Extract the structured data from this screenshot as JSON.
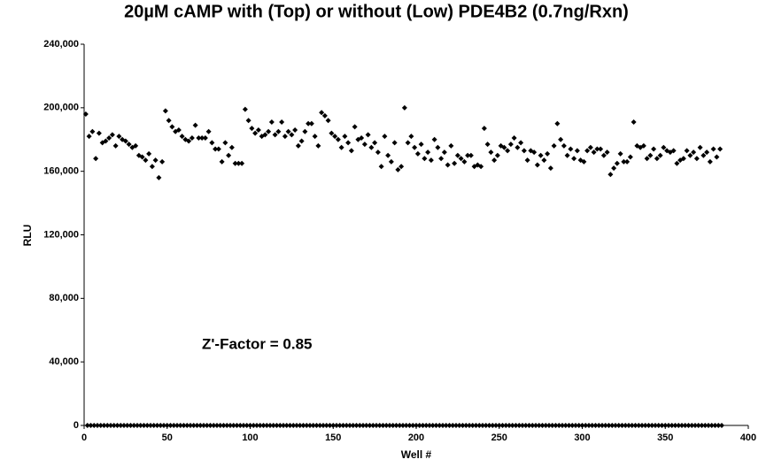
{
  "chart_data": {
    "type": "scatter",
    "title": "20µM cAMP with (Top) or without (Low) PDE4B2 (0.7ng/Rxn)",
    "x_label": "Well #",
    "y_label": "RLU",
    "annotation": "Z'-Factor = 0.85",
    "xlim": [
      0,
      400
    ],
    "xticks": [
      0,
      50,
      100,
      150,
      200,
      250,
      300,
      350,
      400
    ],
    "ylim": [
      0,
      240000
    ],
    "yticks": [
      0,
      {
        "value": 40000,
        "label": "40,000"
      },
      {
        "value": 80000,
        "label": "80,000"
      },
      {
        "value": 120000,
        "label": "120,000"
      },
      {
        "value": 160000,
        "label": "160,000"
      },
      {
        "value": 200000,
        "label": "200,000"
      },
      {
        "value": 240000,
        "label": "240,000"
      }
    ],
    "grid": false,
    "series": [
      {
        "color": "#000000",
        "x": [
          1,
          3,
          5,
          7,
          9,
          11,
          13,
          15,
          17,
          19,
          21,
          23,
          25,
          27,
          29,
          31,
          33,
          35,
          37,
          39,
          41,
          43,
          45,
          47,
          49,
          51,
          53,
          55,
          57,
          59,
          61,
          63,
          65,
          67,
          69,
          71,
          73,
          75,
          77,
          79,
          81,
          83,
          85,
          87,
          89,
          91,
          93,
          95,
          97,
          99,
          101,
          103,
          105,
          107,
          109,
          111,
          113,
          115,
          117,
          119,
          121,
          123,
          125,
          127,
          129,
          131,
          133,
          135,
          137,
          139,
          141,
          143,
          145,
          147,
          149,
          151,
          153,
          155,
          157,
          159,
          161,
          163,
          165,
          167,
          169,
          171,
          173,
          175,
          177,
          179,
          181,
          183,
          185,
          187,
          189,
          191,
          193,
          195,
          197,
          199,
          201,
          203,
          205,
          207,
          209,
          211,
          213,
          215,
          217,
          219,
          221,
          223,
          225,
          227,
          229,
          231,
          233,
          235,
          237,
          239,
          241,
          243,
          245,
          247,
          249,
          251,
          253,
          255,
          257,
          259,
          261,
          263,
          265,
          267,
          269,
          271,
          273,
          275,
          277,
          279,
          281,
          283,
          285,
          287,
          289,
          291,
          293,
          295,
          297,
          299,
          301,
          303,
          305,
          307,
          309,
          311,
          313,
          315,
          317,
          319,
          321,
          323,
          325,
          327,
          329,
          331,
          333,
          335,
          337,
          339,
          341,
          343,
          345,
          347,
          349,
          351,
          353,
          355,
          357,
          359,
          361,
          363,
          365,
          367,
          369,
          371,
          373,
          375,
          377,
          379,
          381,
          383
        ],
        "values": [
          196000,
          182000,
          185000,
          168000,
          184000,
          178000,
          179000,
          181000,
          183000,
          176000,
          182000,
          180000,
          179000,
          177000,
          175000,
          176000,
          170000,
          169000,
          167000,
          171000,
          163000,
          167000,
          156000,
          166000,
          198000,
          192000,
          188000,
          185000,
          186000,
          182000,
          180000,
          179000,
          181000,
          189000,
          181000,
          181000,
          181000,
          185000,
          178000,
          174000,
          174000,
          166000,
          178000,
          170000,
          175000,
          165000,
          165000,
          165000,
          199000,
          192000,
          187000,
          184000,
          186000,
          182000,
          183000,
          185000,
          191000,
          183000,
          185000,
          191000,
          182000,
          185000,
          183000,
          186000,
          176000,
          179000,
          185000,
          190000,
          190000,
          182000,
          176000,
          197000,
          195000,
          192000,
          184000,
          182000,
          180000,
          175000,
          182000,
          178000,
          173000,
          188000,
          180000,
          181000,
          177000,
          183000,
          175000,
          178000,
          172000,
          163000,
          182000,
          170000,
          166000,
          178000,
          161000,
          163000,
          200000,
          178000,
          182000,
          175000,
          171000,
          177000,
          168000,
          172000,
          167000,
          180000,
          175000,
          168000,
          172000,
          164000,
          176000,
          165000,
          170000,
          168000,
          166000,
          170000,
          170000,
          163000,
          164000,
          163000,
          187000,
          177000,
          172000,
          167000,
          170000,
          176000,
          175000,
          173000,
          177000,
          181000,
          175000,
          178000,
          173000,
          167000,
          173000,
          172000,
          164000,
          170000,
          167000,
          171000,
          162000,
          176000,
          190000,
          180000,
          176000,
          170000,
          174000,
          168000,
          173000,
          167000,
          166000,
          173000,
          175000,
          172000,
          174000,
          174000,
          170000,
          172000,
          158000,
          162000,
          165000,
          171000,
          166000,
          166000,
          169000,
          191000,
          176000,
          175000,
          176000,
          168000,
          170000,
          174000,
          168000,
          170000,
          175000,
          173000,
          172000,
          173000,
          165000,
          167000,
          168000,
          173000,
          170000,
          172000,
          168000,
          175000,
          170000,
          172000,
          166000,
          174000,
          169000,
          174000
        ]
      },
      {
        "color": "#000000",
        "x": [
          2,
          4,
          6,
          8,
          10,
          12,
          14,
          16,
          18,
          20,
          22,
          24,
          26,
          28,
          30,
          32,
          34,
          36,
          38,
          40,
          42,
          44,
          46,
          48,
          50,
          52,
          54,
          56,
          58,
          60,
          62,
          64,
          66,
          68,
          70,
          72,
          74,
          76,
          78,
          80,
          82,
          84,
          86,
          88,
          90,
          92,
          94,
          96,
          98,
          100,
          102,
          104,
          106,
          108,
          110,
          112,
          114,
          116,
          118,
          120,
          122,
          124,
          126,
          128,
          130,
          132,
          134,
          136,
          138,
          140,
          142,
          144,
          146,
          148,
          150,
          152,
          154,
          156,
          158,
          160,
          162,
          164,
          166,
          168,
          170,
          172,
          174,
          176,
          178,
          180,
          182,
          184,
          186,
          188,
          190,
          192,
          194,
          196,
          198,
          200,
          202,
          204,
          206,
          208,
          210,
          212,
          214,
          216,
          218,
          220,
          222,
          224,
          226,
          228,
          230,
          232,
          234,
          236,
          238,
          240,
          242,
          244,
          246,
          248,
          250,
          252,
          254,
          256,
          258,
          260,
          262,
          264,
          266,
          268,
          270,
          272,
          274,
          276,
          278,
          280,
          282,
          284,
          286,
          288,
          290,
          292,
          294,
          296,
          298,
          300,
          302,
          304,
          306,
          308,
          310,
          312,
          314,
          316,
          318,
          320,
          322,
          324,
          326,
          328,
          330,
          332,
          334,
          336,
          338,
          340,
          342,
          344,
          346,
          348,
          350,
          352,
          354,
          356,
          358,
          360,
          362,
          364,
          366,
          368,
          370,
          372,
          374,
          376,
          378,
          380,
          382,
          384
        ],
        "values": [
          0,
          0,
          0,
          0,
          0,
          0,
          0,
          0,
          0,
          0,
          0,
          0,
          0,
          0,
          0,
          0,
          0,
          0,
          0,
          0,
          0,
          0,
          0,
          0,
          0,
          0,
          0,
          0,
          0,
          0,
          0,
          0,
          0,
          0,
          0,
          0,
          0,
          0,
          0,
          0,
          0,
          0,
          0,
          0,
          0,
          0,
          0,
          0,
          0,
          0,
          0,
          0,
          0,
          0,
          0,
          0,
          0,
          0,
          0,
          0,
          0,
          0,
          0,
          0,
          0,
          0,
          0,
          0,
          0,
          0,
          0,
          0,
          0,
          0,
          0,
          0,
          0,
          0,
          0,
          0,
          0,
          0,
          0,
          0,
          0,
          0,
          0,
          0,
          0,
          0,
          0,
          0,
          0,
          0,
          0,
          0,
          0,
          0,
          0,
          0,
          0,
          0,
          0,
          0,
          0,
          0,
          0,
          0,
          0,
          0,
          0,
          0,
          0,
          0,
          0,
          0,
          0,
          0,
          0,
          0,
          0,
          0,
          0,
          0,
          0,
          0,
          0,
          0,
          0,
          0,
          0,
          0,
          0,
          0,
          0,
          0,
          0,
          0,
          0,
          0,
          0,
          0,
          0,
          0,
          0,
          0,
          0,
          0,
          0,
          0,
          0,
          0,
          0,
          0,
          0,
          0,
          0,
          0,
          0,
          0,
          0,
          0,
          0,
          0,
          0,
          0,
          0,
          0,
          0,
          0,
          0,
          0,
          0,
          0,
          0,
          0,
          0,
          0,
          0,
          0,
          0,
          0,
          0,
          0,
          0,
          0,
          0,
          0,
          0,
          0,
          0,
          0
        ]
      }
    ]
  }
}
